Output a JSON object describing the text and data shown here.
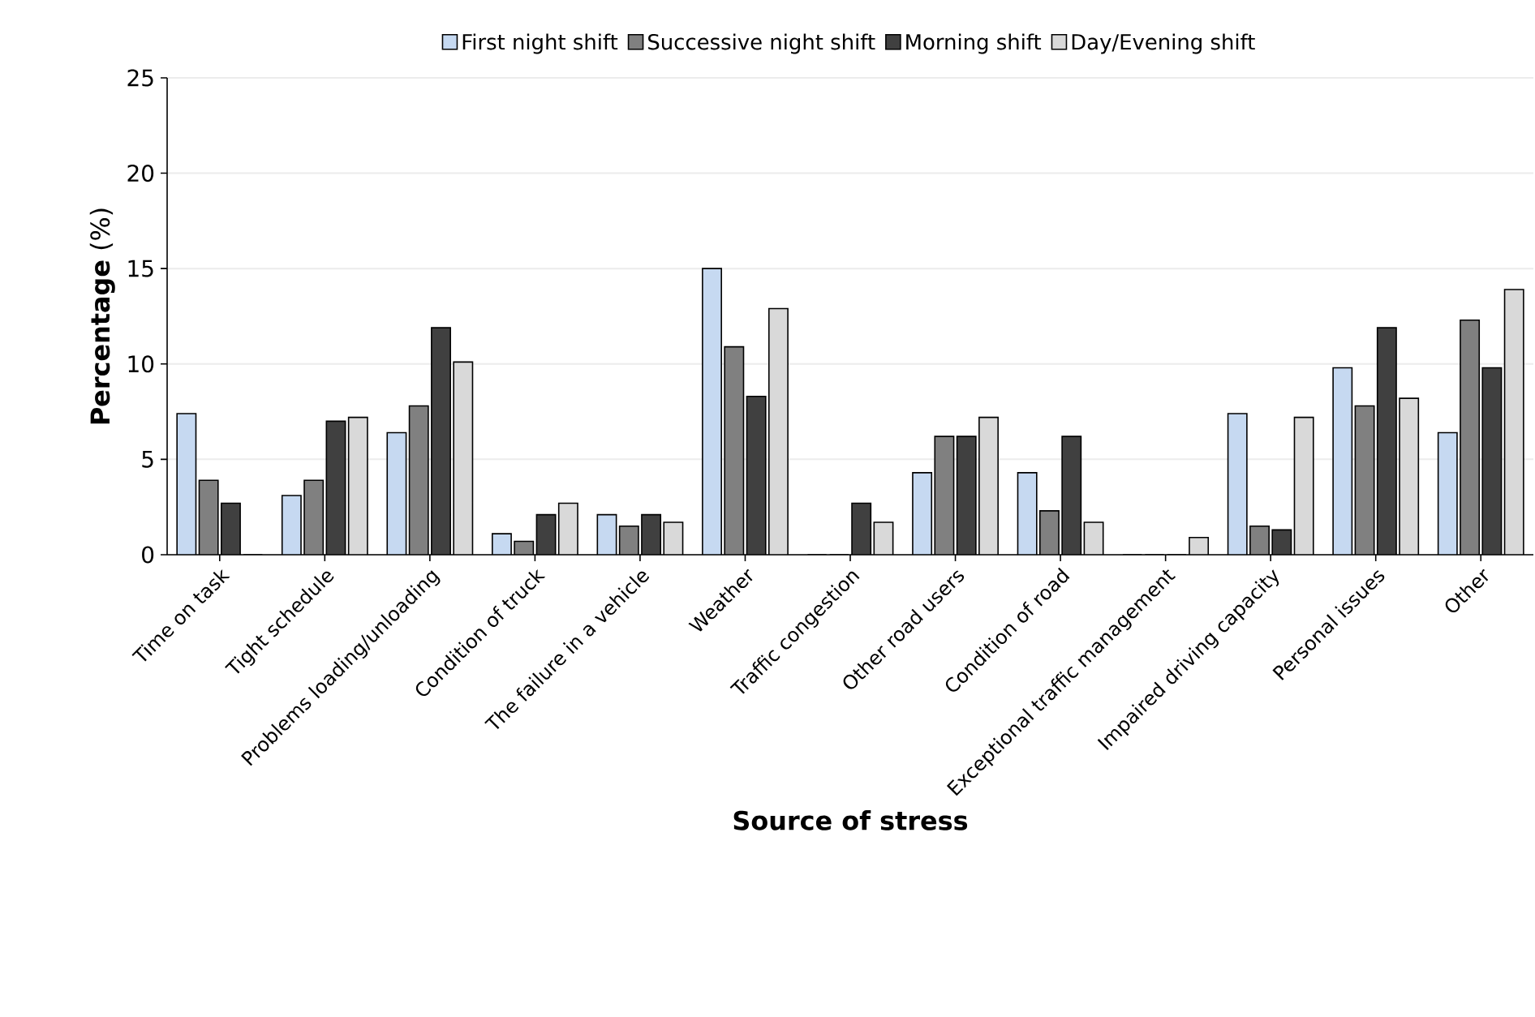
{
  "chart_data": {
    "type": "bar",
    "xlabel": "Source of stress",
    "ylabel": "**Percentage** (%)",
    "categories": [
      "Time on task",
      "Tight schedule",
      "Problems loading/unloading",
      "Condition of truck",
      "The failure in a vehicle",
      "Weather",
      "Traffic congestion",
      "Other road users",
      "Condition of road",
      "Exceptional traffic management",
      "Impaired driving capacity",
      "Personal issues",
      "Other"
    ],
    "series": [
      {
        "name": "First night shift",
        "color": "#c6d9f1",
        "values": [
          7.4,
          3.1,
          6.4,
          1.1,
          2.1,
          15.0,
          0,
          4.3,
          4.3,
          0,
          7.4,
          9.8,
          6.4
        ]
      },
      {
        "name": "Successive night shift",
        "color": "#808080",
        "values": [
          3.9,
          3.9,
          7.8,
          0.7,
          1.5,
          10.9,
          0,
          6.2,
          2.3,
          0,
          1.5,
          7.8,
          12.3
        ]
      },
      {
        "name": "Morning shift",
        "color": "#404040",
        "values": [
          2.7,
          7.0,
          11.9,
          2.1,
          2.1,
          8.3,
          2.7,
          6.2,
          6.2,
          0,
          1.3,
          11.9,
          9.8
        ]
      },
      {
        "name": "Day/Evening shift",
        "color": "#d9d9d9",
        "values": [
          0,
          7.2,
          10.1,
          2.7,
          1.7,
          12.9,
          1.7,
          7.2,
          1.7,
          0.9,
          7.2,
          8.2,
          13.9
        ]
      }
    ],
    "ylim": [
      0,
      25
    ],
    "yticks": [
      0,
      5,
      10,
      15,
      20,
      25
    ],
    "grid": "y",
    "legend": "top"
  }
}
